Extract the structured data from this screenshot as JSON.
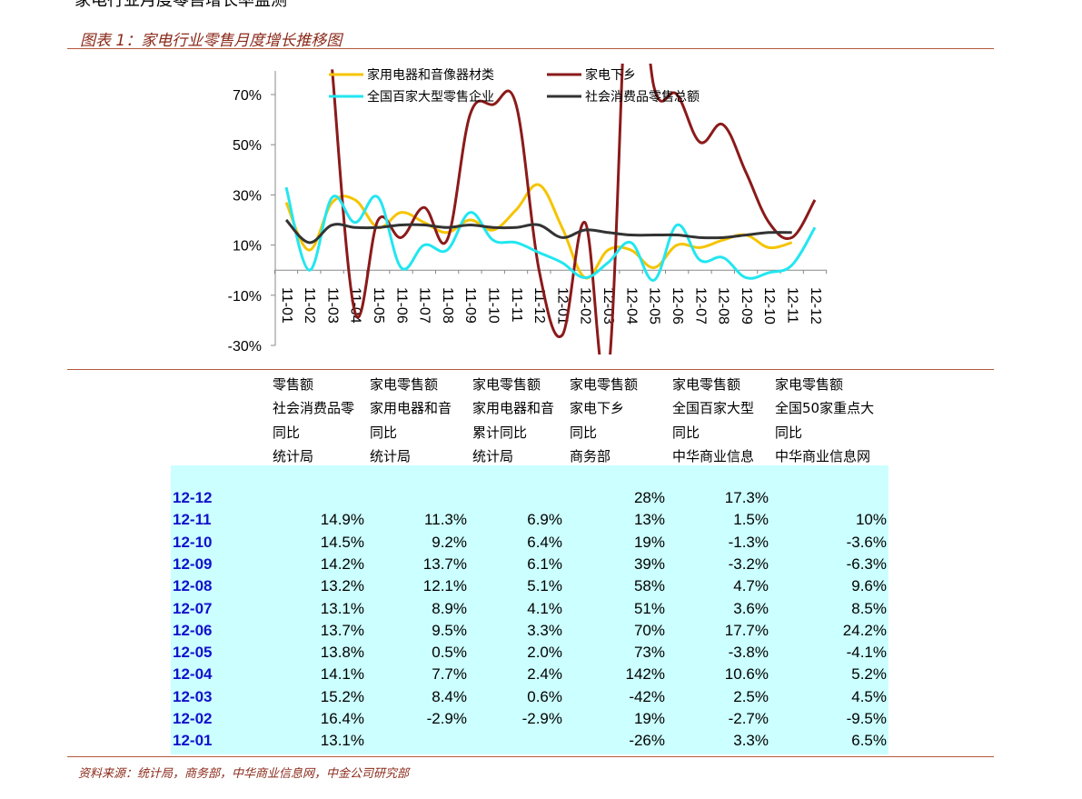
{
  "page": {
    "top_title": "家电行业月度零售增长率监测",
    "figure_caption": "图表 1：家电行业零售月度增长推移图",
    "source": "资料来源：统计局，商务部，中华商业信息网，中金公司研究部"
  },
  "chart_data": {
    "type": "line",
    "x": [
      "11-01",
      "11-02",
      "11-03",
      "11-04",
      "11-05",
      "11-06",
      "11-07",
      "11-08",
      "11-09",
      "11-10",
      "11-11",
      "11-12",
      "12-01",
      "12-02",
      "12-03",
      "12-04",
      "12-05",
      "12-06",
      "12-07",
      "12-08",
      "12-09",
      "12-10",
      "12-11",
      "12-12"
    ],
    "ylim": [
      -30,
      80
    ],
    "yticks": [
      -30,
      -10,
      10,
      30,
      50,
      70
    ],
    "ytick_labels": [
      "-30%",
      "-10%",
      "10%",
      "30%",
      "50%",
      "70%"
    ],
    "legend_placement": "top",
    "grid": false,
    "series": [
      {
        "name": "家用电器和音像器材类",
        "color": "#f5c400",
        "values": [
          27,
          8,
          27,
          28,
          17,
          23,
          19,
          15,
          20,
          16,
          24,
          34,
          17,
          -3,
          8,
          8,
          1,
          10,
          9,
          12,
          14,
          9,
          11,
          null
        ]
      },
      {
        "name": "家电下乡",
        "color": "#8b1a1a",
        "values": [
          null,
          null,
          80,
          -17,
          20,
          13,
          25,
          12,
          62,
          66,
          66,
          0,
          -26,
          19,
          -42,
          142,
          73,
          70,
          51,
          58,
          39,
          19,
          13,
          28
        ]
      },
      {
        "name": "全国百家大型零售企业",
        "color": "#22e6f0",
        "values": [
          33,
          0,
          29,
          19,
          29,
          1,
          10,
          8,
          23,
          12,
          11,
          7,
          3,
          -3,
          3,
          11,
          -4,
          18,
          4,
          5,
          -3,
          -1,
          2,
          17
        ]
      },
      {
        "name": "社会消费品零售总额",
        "color": "#333333",
        "values": [
          20,
          11,
          18,
          17,
          17,
          18,
          18,
          17,
          18,
          17,
          17,
          18,
          13,
          16,
          15,
          14,
          14,
          14,
          13,
          13,
          14,
          15,
          15,
          null
        ]
      }
    ]
  },
  "table": {
    "headers": [
      [
        "零售额",
        "社会消费品零",
        "同比",
        "统计局"
      ],
      [
        "家电零售额",
        "家用电器和音",
        "同比",
        "统计局"
      ],
      [
        "家电零售额",
        "家用电器和音",
        "累计同比",
        "统计局"
      ],
      [
        "家电零售额",
        "家电下乡",
        "同比",
        "商务部"
      ],
      [
        "家电零售额",
        "全国百家大型",
        "同比",
        "中华商业信息"
      ],
      [
        "家电零售额",
        "全国50家重点大",
        "同比",
        "中华商业信息网"
      ]
    ],
    "rows": [
      {
        "date": "12-12",
        "v": [
          "",
          "",
          "",
          "28%",
          "17.3%",
          ""
        ]
      },
      {
        "date": "12-11",
        "v": [
          "14.9%",
          "11.3%",
          "6.9%",
          "13%",
          "1.5%",
          "10%"
        ]
      },
      {
        "date": "12-10",
        "v": [
          "14.5%",
          "9.2%",
          "6.4%",
          "19%",
          "-1.3%",
          "-3.6%"
        ]
      },
      {
        "date": "12-09",
        "v": [
          "14.2%",
          "13.7%",
          "6.1%",
          "39%",
          "-3.2%",
          "-6.3%"
        ]
      },
      {
        "date": "12-08",
        "v": [
          "13.2%",
          "12.1%",
          "5.1%",
          "58%",
          "4.7%",
          "9.6%"
        ]
      },
      {
        "date": "12-07",
        "v": [
          "13.1%",
          "8.9%",
          "4.1%",
          "51%",
          "3.6%",
          "8.5%"
        ]
      },
      {
        "date": "12-06",
        "v": [
          "13.7%",
          "9.5%",
          "3.3%",
          "70%",
          "17.7%",
          "24.2%"
        ]
      },
      {
        "date": "12-05",
        "v": [
          "13.8%",
          "0.5%",
          "2.0%",
          "73%",
          "-3.8%",
          "-4.1%"
        ]
      },
      {
        "date": "12-04",
        "v": [
          "14.1%",
          "7.7%",
          "2.4%",
          "142%",
          "10.6%",
          "5.2%"
        ]
      },
      {
        "date": "12-03",
        "v": [
          "15.2%",
          "8.4%",
          "0.6%",
          "-42%",
          "2.5%",
          "4.5%"
        ]
      },
      {
        "date": "12-02",
        "v": [
          "16.4%",
          "-2.9%",
          "-2.9%",
          "19%",
          "-2.7%",
          "-9.5%"
        ]
      },
      {
        "date": "12-01",
        "v": [
          "13.1%",
          "",
          "",
          "-26%",
          "3.3%",
          "6.5%"
        ]
      }
    ]
  }
}
